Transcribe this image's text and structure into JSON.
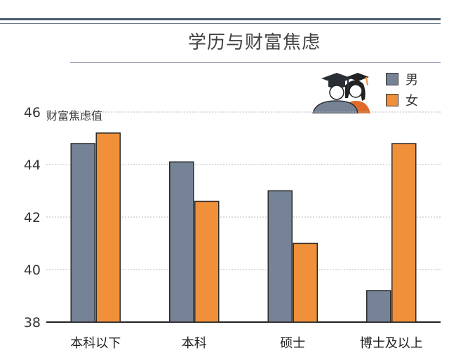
{
  "title": "学历与财富焦虑",
  "colors": {
    "male": "#768396",
    "female": "#f0903a",
    "rule": "#4a5a6b"
  },
  "icon": "graduates-icon",
  "chart_data": {
    "type": "bar",
    "title": "学历与财富焦虑",
    "ylabel": "财富焦虑值",
    "xlabel": "",
    "categories": [
      "本科以下",
      "本科",
      "硕士",
      "博士及以上"
    ],
    "series": [
      {
        "name": "男",
        "values": [
          44.8,
          44.1,
          43.0,
          39.2
        ]
      },
      {
        "name": "女",
        "values": [
          45.2,
          42.6,
          41.0,
          44.8
        ]
      }
    ],
    "ylim": [
      38,
      46
    ],
    "yticks": [
      38,
      40,
      42,
      44,
      46
    ],
    "grid": true,
    "legend": "top-right"
  }
}
